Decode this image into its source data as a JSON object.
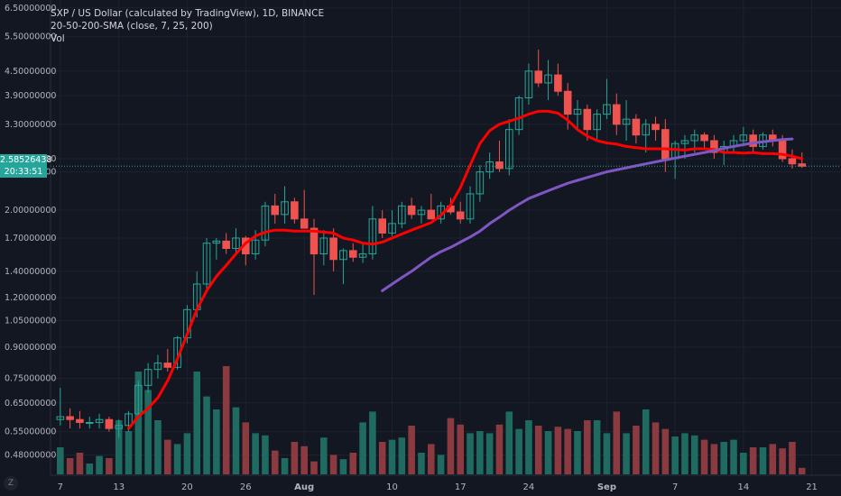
{
  "legend": {
    "title": "SXP / US Dollar (calculated by TradingView), 1D, BINANCE",
    "indicator": "20-50-200-SMA (close, 7, 25, 200)",
    "volume": "Vol"
  },
  "current_price": {
    "price_label": "2.58526438",
    "countdown": "20:33:51",
    "value": 2.585,
    "color": "#26a69a"
  },
  "logo_text": "Z",
  "colors": {
    "background": "#131722",
    "up": "#26a69a",
    "down": "#ef5350",
    "volume_up": "#1f6b62",
    "volume_down": "#8b3a3f",
    "sma_short": "#ff0000",
    "sma_long": "#7e57c2",
    "axis_text": "#b2b5be",
    "grid": "#1e222d"
  },
  "chart_data": {
    "type": "candlestick",
    "y_scale": "log",
    "ylim": [
      0.44,
      6.6
    ],
    "y_ticks": [
      "6.50000000",
      "5.50000000",
      "4.50000000",
      "3.90000000",
      "3.30000000",
      "2.70000000",
      "2.50000000",
      "2.00000000",
      "1.70000000",
      "1.40000000",
      "1.20000000",
      "1.05000000",
      "0.90000000",
      "0.75000000",
      "0.65000000",
      "0.55000000",
      "0.48000000"
    ],
    "x_ticks": [
      "7",
      "13",
      "20",
      "26",
      "Aug",
      "10",
      "17",
      "24",
      "Sep",
      "7",
      "14",
      "21"
    ],
    "x_tick_positions": [
      0,
      6,
      13,
      19,
      25,
      34,
      41,
      48,
      56,
      63,
      70,
      77
    ],
    "x_range": [
      -1,
      80
    ],
    "candles": [
      [
        0.59,
        0.71,
        0.57,
        0.6
      ],
      [
        0.6,
        0.63,
        0.56,
        0.59
      ],
      [
        0.59,
        0.62,
        0.56,
        0.58
      ],
      [
        0.58,
        0.6,
        0.56,
        0.58
      ],
      [
        0.58,
        0.61,
        0.56,
        0.59
      ],
      [
        0.59,
        0.6,
        0.55,
        0.56
      ],
      [
        0.56,
        0.59,
        0.53,
        0.57
      ],
      [
        0.57,
        0.62,
        0.55,
        0.61
      ],
      [
        0.61,
        0.74,
        0.6,
        0.72
      ],
      [
        0.72,
        0.82,
        0.69,
        0.79
      ],
      [
        0.79,
        0.86,
        0.75,
        0.82
      ],
      [
        0.82,
        0.89,
        0.78,
        0.8
      ],
      [
        0.8,
        0.96,
        0.79,
        0.95
      ],
      [
        0.95,
        1.15,
        0.92,
        1.12
      ],
      [
        1.12,
        1.4,
        1.07,
        1.3
      ],
      [
        1.3,
        1.7,
        1.25,
        1.65
      ],
      [
        1.65,
        1.7,
        1.5,
        1.67
      ],
      [
        1.67,
        1.75,
        1.55,
        1.6
      ],
      [
        1.6,
        1.8,
        1.55,
        1.7
      ],
      [
        1.7,
        1.72,
        1.45,
        1.55
      ],
      [
        1.55,
        1.78,
        1.5,
        1.68
      ],
      [
        1.68,
        2.1,
        1.62,
        2.05
      ],
      [
        2.05,
        2.2,
        1.85,
        1.95
      ],
      [
        1.95,
        2.3,
        1.85,
        2.1
      ],
      [
        2.1,
        2.15,
        1.85,
        1.9
      ],
      [
        1.9,
        2.25,
        1.8,
        1.8
      ],
      [
        1.8,
        1.9,
        1.22,
        1.55
      ],
      [
        1.55,
        1.78,
        1.45,
        1.7
      ],
      [
        1.7,
        1.8,
        1.4,
        1.5
      ],
      [
        1.5,
        1.6,
        1.3,
        1.58
      ],
      [
        1.58,
        1.65,
        1.48,
        1.52
      ],
      [
        1.52,
        1.65,
        1.47,
        1.55
      ],
      [
        1.55,
        2.05,
        1.5,
        1.9
      ],
      [
        1.9,
        2.0,
        1.7,
        1.75
      ],
      [
        1.75,
        2.0,
        1.72,
        1.85
      ],
      [
        1.85,
        2.1,
        1.8,
        2.05
      ],
      [
        2.05,
        2.15,
        1.9,
        1.95
      ],
      [
        1.95,
        2.05,
        1.85,
        2.0
      ],
      [
        2.0,
        2.2,
        1.9,
        1.9
      ],
      [
        1.9,
        2.1,
        1.85,
        2.05
      ],
      [
        2.05,
        2.15,
        1.95,
        1.98
      ],
      [
        1.98,
        2.1,
        1.85,
        1.9
      ],
      [
        1.9,
        2.3,
        1.85,
        2.2
      ],
      [
        2.2,
        2.6,
        2.1,
        2.5
      ],
      [
        2.5,
        2.8,
        2.4,
        2.65
      ],
      [
        2.65,
        3.0,
        2.5,
        2.55
      ],
      [
        2.55,
        3.4,
        2.45,
        3.2
      ],
      [
        3.2,
        3.9,
        3.1,
        3.85
      ],
      [
        3.85,
        4.7,
        3.7,
        4.5
      ],
      [
        4.5,
        5.1,
        4.1,
        4.2
      ],
      [
        4.2,
        4.8,
        3.8,
        4.4
      ],
      [
        4.4,
        4.7,
        3.9,
        4.0
      ],
      [
        4.0,
        4.2,
        3.2,
        3.5
      ],
      [
        3.5,
        3.8,
        3.2,
        3.6
      ],
      [
        3.6,
        3.7,
        3.0,
        3.2
      ],
      [
        3.2,
        3.6,
        3.0,
        3.5
      ],
      [
        3.5,
        4.3,
        3.4,
        3.7
      ],
      [
        3.7,
        3.95,
        3.1,
        3.3
      ],
      [
        3.3,
        3.8,
        3.0,
        3.4
      ],
      [
        3.4,
        3.5,
        2.95,
        3.1
      ],
      [
        3.1,
        3.4,
        2.8,
        3.3
      ],
      [
        3.3,
        3.45,
        3.0,
        3.2
      ],
      [
        3.2,
        3.4,
        2.5,
        2.7
      ],
      [
        2.7,
        3.0,
        2.4,
        2.95
      ],
      [
        2.95,
        3.1,
        2.7,
        3.0
      ],
      [
        3.0,
        3.2,
        2.8,
        3.1
      ],
      [
        3.1,
        3.15,
        2.85,
        3.0
      ],
      [
        3.0,
        3.1,
        2.7,
        2.8
      ],
      [
        2.8,
        3.0,
        2.6,
        2.9
      ],
      [
        2.9,
        3.1,
        2.8,
        3.0
      ],
      [
        3.0,
        3.25,
        2.9,
        3.1
      ],
      [
        3.1,
        3.2,
        2.8,
        2.9
      ],
      [
        2.9,
        3.15,
        2.85,
        3.1
      ],
      [
        3.1,
        3.2,
        2.9,
        3.0
      ],
      [
        3.0,
        3.1,
        2.65,
        2.7
      ],
      [
        2.7,
        2.85,
        2.55,
        2.62
      ],
      [
        2.62,
        2.8,
        2.56,
        2.585
      ]
    ],
    "volume": [
      0.25,
      0.15,
      0.2,
      0.1,
      0.17,
      0.15,
      0.5,
      0.4,
      0.95,
      0.78,
      0.5,
      0.32,
      0.28,
      0.38,
      0.95,
      0.72,
      0.6,
      1.0,
      0.62,
      0.48,
      0.38,
      0.36,
      0.22,
      0.15,
      0.3,
      0.26,
      0.12,
      0.34,
      0.18,
      0.14,
      0.2,
      0.48,
      0.58,
      0.3,
      0.32,
      0.34,
      0.45,
      0.2,
      0.28,
      0.18,
      0.52,
      0.46,
      0.38,
      0.4,
      0.38,
      0.46,
      0.58,
      0.42,
      0.5,
      0.45,
      0.4,
      0.44,
      0.42,
      0.4,
      0.5,
      0.5,
      0.38,
      0.58,
      0.38,
      0.45,
      0.6,
      0.48,
      0.42,
      0.35,
      0.38,
      0.36,
      0.32,
      0.28,
      0.3,
      0.32,
      0.2,
      0.25,
      0.25,
      0.28,
      0.24,
      0.3,
      0.06
    ],
    "vol_max": 1.0,
    "sma_short_start": 7,
    "sma_short": [
      0.56,
      0.6,
      0.63,
      0.67,
      0.74,
      0.84,
      0.97,
      1.12,
      1.25,
      1.36,
      1.45,
      1.55,
      1.65,
      1.72,
      1.76,
      1.78,
      1.78,
      1.77,
      1.77,
      1.77,
      1.76,
      1.75,
      1.7,
      1.68,
      1.65,
      1.64,
      1.66,
      1.7,
      1.74,
      1.78,
      1.82,
      1.86,
      1.94,
      2.06,
      2.28,
      2.6,
      2.95,
      3.18,
      3.3,
      3.36,
      3.42,
      3.5,
      3.56,
      3.56,
      3.52,
      3.38,
      3.2,
      3.08,
      3.0,
      2.96,
      2.94,
      2.9,
      2.88,
      2.86,
      2.86,
      2.86,
      2.85,
      2.84,
      2.86,
      2.86,
      2.85,
      2.8,
      2.8,
      2.79,
      2.8,
      2.78,
      2.78,
      2.77,
      2.74,
      2.7
    ],
    "sma_long_start": 33,
    "sma_long": [
      1.25,
      1.3,
      1.35,
      1.4,
      1.46,
      1.52,
      1.57,
      1.61,
      1.66,
      1.71,
      1.77,
      1.85,
      1.92,
      2.0,
      2.07,
      2.14,
      2.19,
      2.24,
      2.29,
      2.34,
      2.38,
      2.42,
      2.46,
      2.5,
      2.53,
      2.56,
      2.59,
      2.62,
      2.65,
      2.68,
      2.71,
      2.74,
      2.77,
      2.8,
      2.83,
      2.87,
      2.9,
      2.93,
      2.96,
      2.98,
      3.0,
      3.02,
      3.03
    ]
  }
}
